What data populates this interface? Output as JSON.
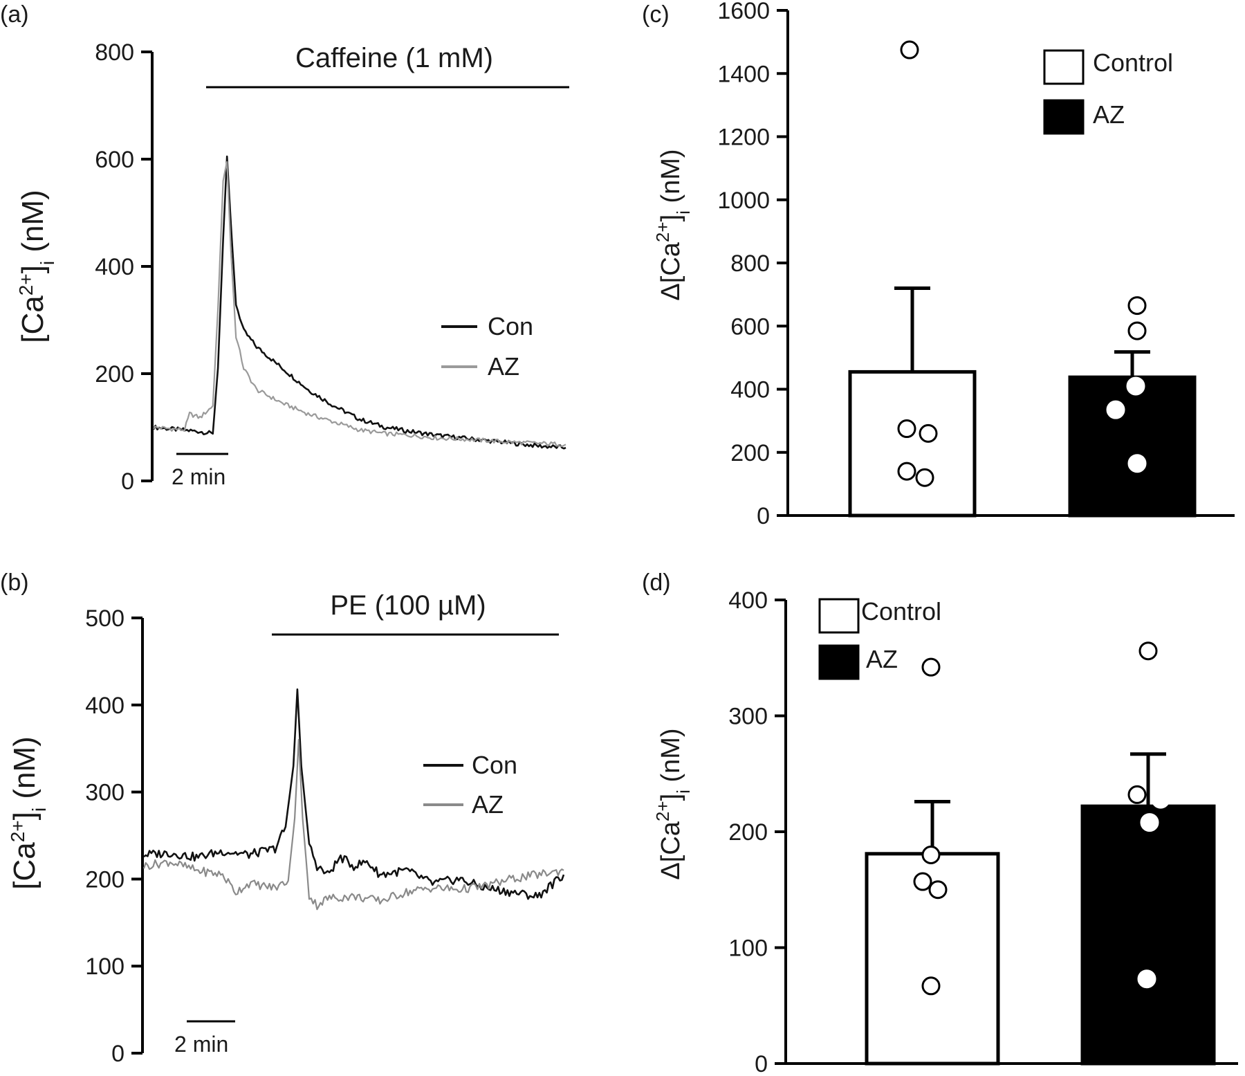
{
  "chart_data": [
    {
      "panel": "(a)",
      "type": "line",
      "stimulus": "Caffeine (1 mM)",
      "ylabel": "[Ca2+]i (nM)",
      "ylabel_parts": {
        "pre": "[Ca",
        "sup": "2+",
        "mid": "]",
        "sub": "i",
        "post": " (nM)"
      },
      "ylim": [
        0,
        800
      ],
      "yticks": [
        0,
        200,
        400,
        600,
        800
      ],
      "scale_bar": "2 min",
      "legend_position": "right",
      "series": [
        {
          "name": "Con",
          "color": "#111111",
          "x": [
            0,
            1.8,
            2.3,
            2.5,
            2.7,
            2.85,
            3.0,
            3.2,
            3.5,
            4,
            5,
            6,
            7,
            8,
            9,
            10,
            11,
            12,
            13,
            14,
            15,
            16
          ],
          "y": [
            100,
            92,
            88,
            210,
            450,
            605,
            480,
            330,
            280,
            250,
            210,
            170,
            140,
            115,
            100,
            92,
            85,
            80,
            75,
            70,
            65,
            62
          ]
        },
        {
          "name": "AZ",
          "color": "#9a9a9a",
          "x": [
            0,
            1.2,
            1.4,
            1.8,
            2.3,
            2.5,
            2.7,
            2.85,
            3.0,
            3.2,
            3.5,
            4,
            5,
            6,
            7,
            8,
            9,
            10,
            11,
            12,
            13,
            14,
            15,
            16
          ],
          "y": [
            100,
            95,
            125,
            118,
            140,
            320,
            560,
            595,
            430,
            270,
            210,
            170,
            145,
            125,
            110,
            95,
            88,
            85,
            80,
            78,
            75,
            72,
            70,
            68
          ]
        }
      ]
    },
    {
      "panel": "(b)",
      "type": "line",
      "stimulus": "PE (100 µM)",
      "ylabel": "[Ca2+]i (nM)",
      "ylabel_parts": {
        "pre": "[Ca",
        "sup": "2+",
        "mid": "]",
        "sub": "i",
        "post": " (nM)"
      },
      "ylim": [
        0,
        500
      ],
      "yticks": [
        0,
        100,
        200,
        300,
        400,
        500
      ],
      "scale_bar": "2 min",
      "legend_position": "right",
      "series": [
        {
          "name": "Con",
          "color": "#111111",
          "x": [
            0,
            1,
            2,
            3,
            4,
            5,
            5.4,
            5.7,
            5.85,
            6.0,
            6.3,
            6.6,
            7,
            7.5,
            8,
            8.5,
            9,
            10,
            11,
            12,
            13,
            14,
            15,
            16
          ],
          "y": [
            228,
            230,
            225,
            232,
            228,
            235,
            260,
            330,
            418,
            330,
            240,
            215,
            205,
            225,
            215,
            220,
            205,
            210,
            195,
            200,
            190,
            185,
            180,
            205
          ]
        },
        {
          "name": "AZ",
          "color": "#8a8a8a",
          "x": [
            0,
            1,
            2,
            3,
            3.5,
            4,
            5,
            5.5,
            5.75,
            5.9,
            6.05,
            6.3,
            6.6,
            7,
            8,
            9,
            10,
            11,
            12,
            13,
            14,
            15,
            16
          ],
          "y": [
            215,
            220,
            210,
            205,
            185,
            195,
            190,
            198,
            270,
            360,
            270,
            180,
            170,
            178,
            180,
            175,
            185,
            190,
            188,
            192,
            200,
            205,
            210
          ]
        }
      ]
    },
    {
      "panel": "(c)",
      "type": "bar",
      "ylabel": "Δ[Ca2+]i (nM)",
      "ylabel_parts": {
        "pre": "Δ[Ca",
        "sup": "2+",
        "mid": "]",
        "sub": "i",
        "post": " (nM)"
      },
      "ylim": [
        0,
        1600
      ],
      "yticks": [
        0,
        200,
        400,
        600,
        800,
        1000,
        1200,
        1400,
        1600
      ],
      "legend_position": "top-right",
      "categories": [
        "Control",
        "AZ"
      ],
      "values": [
        455,
        438
      ],
      "errors": [
        265,
        80
      ],
      "fills": [
        "#ffffff",
        "#000000"
      ],
      "points": [
        [
          1475,
          275,
          260,
          140,
          120
        ],
        [
          665,
          585,
          410,
          335,
          165
        ]
      ]
    },
    {
      "panel": "(d)",
      "type": "bar",
      "ylabel": "Δ[Ca2+]i (nM)",
      "ylabel_parts": {
        "pre": "Δ[Ca",
        "sup": "2+",
        "mid": "]",
        "sub": "i",
        "post": " (nM)"
      },
      "ylim": [
        0,
        400
      ],
      "yticks": [
        0,
        100,
        200,
        300,
        400
      ],
      "legend_position": "top-left",
      "categories": [
        "Control",
        "AZ"
      ],
      "values": [
        181,
        222
      ],
      "errors": [
        45,
        45
      ],
      "fills": [
        "#ffffff",
        "#000000"
      ],
      "points": [
        [
          342,
          180,
          157,
          150,
          67
        ],
        [
          356,
          232,
          228,
          208,
          73
        ]
      ]
    }
  ]
}
